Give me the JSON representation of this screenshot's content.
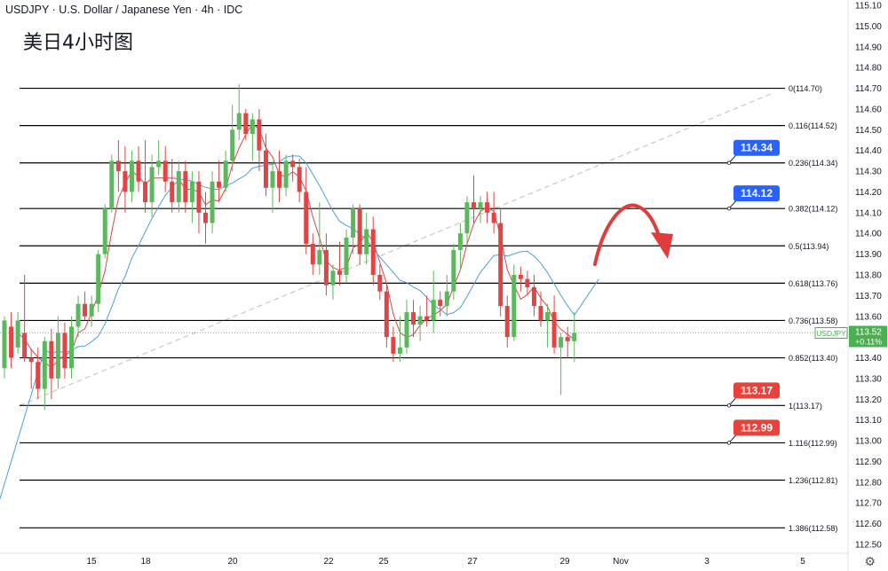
{
  "header": {
    "symbol": "USDJPY",
    "name": "U.S. Dollar / Japanese Yen",
    "interval": "4h",
    "source": "IDC",
    "annotation_cn": "美日4小时图"
  },
  "price_badge": {
    "symbol": "USDJPY",
    "price": "113.52",
    "change": "+0.11%",
    "color": "#4caf50"
  },
  "colors": {
    "up": "#5cb85c",
    "down": "#e04444",
    "ma_fast": "#e04444",
    "ma_slow": "#4a9fe0",
    "badge_blue": "#2962ff",
    "badge_red": "#e8423a",
    "fib_line": "#000000",
    "trend": "#c8c8c8"
  },
  "chart_data": {
    "type": "candlestick",
    "y_axis": {
      "min": 112.5,
      "max": 115.1,
      "side": "right",
      "ticks": [
        "115.10",
        "115.00",
        "114.90",
        "114.80",
        "114.70",
        "114.60",
        "114.50",
        "114.40",
        "114.30",
        "114.20",
        "114.10",
        "114.00",
        "113.90",
        "113.80",
        "113.70",
        "113.60",
        "113.50",
        "113.40",
        "113.30",
        "113.20",
        "113.10",
        "113.00",
        "112.90",
        "112.80",
        "112.70",
        "112.60",
        "112.50"
      ]
    },
    "x_axis": {
      "ticks": [
        "15",
        "18",
        "20",
        "22",
        "25",
        "27",
        "29",
        "Nov",
        "3",
        "5"
      ]
    },
    "fibonacci": [
      {
        "label": "0(114.70)",
        "price": 114.7
      },
      {
        "label": "0.116(114.52)",
        "price": 114.52
      },
      {
        "label": "0.236(114.34)",
        "price": 114.34
      },
      {
        "label": "0.382(114.12)",
        "price": 114.12
      },
      {
        "label": "0.5(113.94)",
        "price": 113.94
      },
      {
        "label": "0.618(113.76)",
        "price": 113.76
      },
      {
        "label": "0.736(113.58)",
        "price": 113.58
      },
      {
        "label": "0.852(113.40)",
        "price": 113.4
      },
      {
        "label": "1(113.17)",
        "price": 113.17
      },
      {
        "label": "1.116(112.99)",
        "price": 112.99
      },
      {
        "label": "1.236(112.81)",
        "price": 112.81
      },
      {
        "label": "1.386(112.58)",
        "price": 112.58
      }
    ],
    "price_labels": [
      {
        "text": "114.34",
        "price": 114.34,
        "color": "blue"
      },
      {
        "text": "114.12",
        "price": 114.12,
        "color": "blue"
      },
      {
        "text": "113.17",
        "price": 113.17,
        "color": "red"
      },
      {
        "text": "112.99",
        "price": 112.99,
        "color": "red"
      }
    ],
    "current_price": 113.52,
    "candles_ohlc": [
      [
        113.35,
        113.6,
        113.3,
        113.58
      ],
      [
        113.55,
        113.62,
        113.35,
        113.4
      ],
      [
        113.45,
        113.62,
        113.42,
        113.58
      ],
      [
        113.52,
        113.8,
        113.38,
        113.4
      ],
      [
        113.4,
        113.44,
        113.25,
        113.38
      ],
      [
        113.38,
        113.45,
        113.2,
        113.25
      ],
      [
        113.25,
        113.5,
        113.15,
        113.48
      ],
      [
        113.48,
        113.54,
        113.2,
        113.3
      ],
      [
        113.3,
        113.6,
        113.25,
        113.52
      ],
      [
        113.52,
        113.57,
        113.3,
        113.35
      ],
      [
        113.35,
        113.6,
        113.3,
        113.55
      ],
      [
        113.55,
        113.7,
        113.5,
        113.66
      ],
      [
        113.66,
        113.72,
        113.58,
        113.6
      ],
      [
        113.6,
        113.7,
        113.55,
        113.66
      ],
      [
        113.66,
        113.92,
        113.62,
        113.9
      ],
      [
        113.9,
        114.14,
        113.88,
        114.12
      ],
      [
        114.12,
        114.38,
        114.1,
        114.35
      ],
      [
        114.35,
        114.45,
        114.2,
        114.3
      ],
      [
        114.3,
        114.42,
        114.1,
        114.2
      ],
      [
        114.2,
        114.4,
        114.15,
        114.35
      ],
      [
        114.35,
        114.42,
        114.2,
        114.25
      ],
      [
        114.25,
        114.45,
        114.1,
        114.15
      ],
      [
        114.15,
        114.38,
        114.08,
        114.32
      ],
      [
        114.32,
        114.45,
        114.28,
        114.35
      ],
      [
        114.35,
        114.42,
        114.2,
        114.25
      ],
      [
        114.25,
        114.36,
        114.1,
        114.15
      ],
      [
        114.15,
        114.35,
        114.1,
        114.3
      ],
      [
        114.3,
        114.35,
        114.1,
        114.15
      ],
      [
        114.15,
        114.3,
        114.05,
        114.25
      ],
      [
        114.25,
        114.3,
        114.0,
        114.1
      ],
      [
        114.1,
        114.2,
        113.95,
        114.05
      ],
      [
        114.05,
        114.3,
        114.0,
        114.25
      ],
      [
        114.25,
        114.35,
        114.15,
        114.22
      ],
      [
        114.22,
        114.4,
        114.2,
        114.35
      ],
      [
        114.35,
        114.62,
        114.3,
        114.5
      ],
      [
        114.5,
        114.72,
        114.45,
        114.58
      ],
      [
        114.58,
        114.6,
        114.45,
        114.48
      ],
      [
        114.48,
        114.58,
        114.35,
        114.55
      ],
      [
        114.55,
        114.6,
        114.3,
        114.4
      ],
      [
        114.4,
        114.48,
        114.18,
        114.22
      ],
      [
        114.22,
        114.35,
        114.1,
        114.3
      ],
      [
        114.3,
        114.4,
        114.15,
        114.22
      ],
      [
        114.22,
        114.38,
        114.18,
        114.35
      ],
      [
        114.35,
        114.38,
        114.25,
        114.32
      ],
      [
        114.32,
        114.36,
        114.15,
        114.2
      ],
      [
        114.2,
        114.32,
        113.9,
        113.95
      ],
      [
        113.95,
        114.0,
        113.8,
        113.85
      ],
      [
        113.85,
        114.15,
        113.8,
        113.92
      ],
      [
        113.92,
        114.0,
        113.7,
        113.75
      ],
      [
        113.75,
        113.85,
        113.68,
        113.82
      ],
      [
        113.82,
        113.96,
        113.75,
        113.8
      ],
      [
        113.8,
        114.02,
        113.76,
        113.98
      ],
      [
        113.98,
        114.14,
        113.9,
        114.12
      ],
      [
        114.12,
        114.14,
        113.85,
        113.9
      ],
      [
        113.9,
        114.1,
        113.85,
        114.02
      ],
      [
        114.02,
        114.08,
        113.75,
        113.8
      ],
      [
        113.8,
        113.85,
        113.68,
        113.72
      ],
      [
        113.72,
        113.75,
        113.45,
        113.5
      ],
      [
        113.5,
        113.55,
        113.38,
        113.42
      ],
      [
        113.42,
        113.6,
        113.38,
        113.45
      ],
      [
        113.45,
        113.68,
        113.42,
        113.62
      ],
      [
        113.62,
        113.68,
        113.5,
        113.56
      ],
      [
        113.56,
        113.65,
        113.48,
        113.6
      ],
      [
        113.6,
        113.7,
        113.55,
        113.58
      ],
      [
        113.58,
        113.82,
        113.52,
        113.68
      ],
      [
        113.68,
        113.72,
        113.6,
        113.65
      ],
      [
        113.65,
        113.8,
        113.6,
        113.72
      ],
      [
        113.72,
        113.95,
        113.68,
        113.92
      ],
      [
        113.92,
        114.05,
        113.82,
        114.0
      ],
      [
        114.0,
        114.18,
        113.95,
        114.15
      ],
      [
        114.15,
        114.28,
        114.05,
        114.12
      ],
      [
        114.12,
        114.18,
        114.05,
        114.15
      ],
      [
        114.15,
        114.2,
        114.05,
        114.1
      ],
      [
        114.1,
        114.2,
        114.0,
        114.05
      ],
      [
        114.05,
        114.12,
        113.6,
        113.65
      ],
      [
        113.65,
        113.7,
        113.45,
        113.5
      ],
      [
        113.5,
        113.85,
        113.48,
        113.8
      ],
      [
        113.8,
        113.84,
        113.72,
        113.78
      ],
      [
        113.78,
        113.82,
        113.7,
        113.74
      ],
      [
        113.74,
        113.8,
        113.6,
        113.65
      ],
      [
        113.65,
        113.72,
        113.55,
        113.58
      ],
      [
        113.58,
        113.66,
        113.45,
        113.62
      ],
      [
        113.62,
        113.7,
        113.42,
        113.45
      ],
      [
        113.45,
        113.52,
        113.22,
        113.5
      ],
      [
        113.5,
        113.55,
        113.4,
        113.48
      ],
      [
        113.48,
        113.62,
        113.38,
        113.52
      ]
    ]
  }
}
